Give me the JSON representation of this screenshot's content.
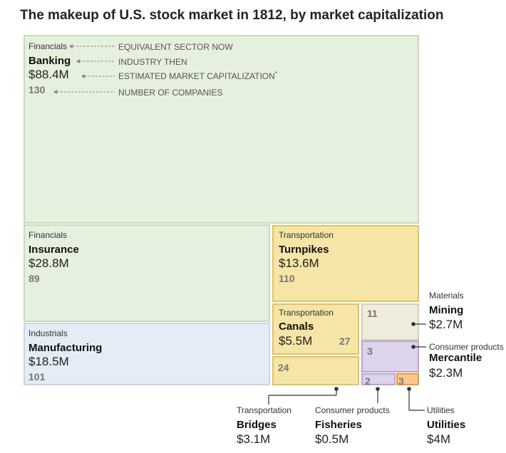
{
  "title": "The makeup of U.S. stock market in 1812, by market capitalization",
  "legend": {
    "sector": "EQUIVALENT SECTOR NOW",
    "industry": "INDUSTRY THEN",
    "cap": "ESTIMATED MARKET CAPITALIZATION",
    "cap_mark": "*",
    "count": "NUMBER OF COMPANIES"
  },
  "colors": {
    "financials_fill": "#e6f0de",
    "financials_stroke": "#c6dcb8",
    "industrials_fill": "#e4ecf5",
    "industrials_stroke": "#c8d6e6",
    "transportation_fill": "#f5e5a6",
    "transportation_stroke": "#e3c261",
    "materials_fill": "#efecdc",
    "materials_stroke": "#d5d0b3",
    "consumer_fill": "#ddd3ea",
    "consumer_stroke": "#b9a6d3",
    "utilities_fill": "#f7c88e",
    "utilities_stroke": "#ef9a3c",
    "line": "#333333"
  },
  "chart_data": {
    "type": "treemap",
    "title": "The makeup of U.S. stock market in 1812, by market capitalization",
    "nodes": [
      {
        "id": "banking",
        "sector": "Financials",
        "industry": "Banking",
        "cap_label": "$88.4M",
        "cap_millions": 88.4,
        "companies": 130
      },
      {
        "id": "insurance",
        "sector": "Financials",
        "industry": "Insurance",
        "cap_label": "$28.8M",
        "cap_millions": 28.8,
        "companies": 89
      },
      {
        "id": "manufacturing",
        "sector": "Industrials",
        "industry": "Manufacturing",
        "cap_label": "$18.5M",
        "cap_millions": 18.5,
        "companies": 101
      },
      {
        "id": "turnpikes",
        "sector": "Transportation",
        "industry": "Turnpikes",
        "cap_label": "$13.6M",
        "cap_millions": 13.6,
        "companies": 110
      },
      {
        "id": "canals",
        "sector": "Transportation",
        "industry": "Canals",
        "cap_label": "$5.5M",
        "cap_millions": 5.5,
        "companies": 27
      },
      {
        "id": "bridges",
        "sector": "Transportation",
        "industry": "Bridges",
        "cap_label": "$3.1M",
        "cap_millions": 3.1,
        "companies": 24
      },
      {
        "id": "mining",
        "sector": "Materials",
        "industry": "Mining",
        "cap_label": "$2.7M",
        "cap_millions": 2.7,
        "companies": 11
      },
      {
        "id": "mercantile",
        "sector": "Consumer products",
        "industry": "Mercantile",
        "cap_label": "$2.3M",
        "cap_millions": 2.3,
        "companies": 3
      },
      {
        "id": "fisheries",
        "sector": "Consumer products",
        "industry": "Fisheries",
        "cap_label": "$0.5M",
        "cap_millions": 0.5,
        "companies": 2
      },
      {
        "id": "utilities",
        "sector": "Utilities",
        "industry": "Utilities",
        "cap_label": "$4M",
        "cap_millions": 4,
        "companies": 3
      }
    ]
  }
}
